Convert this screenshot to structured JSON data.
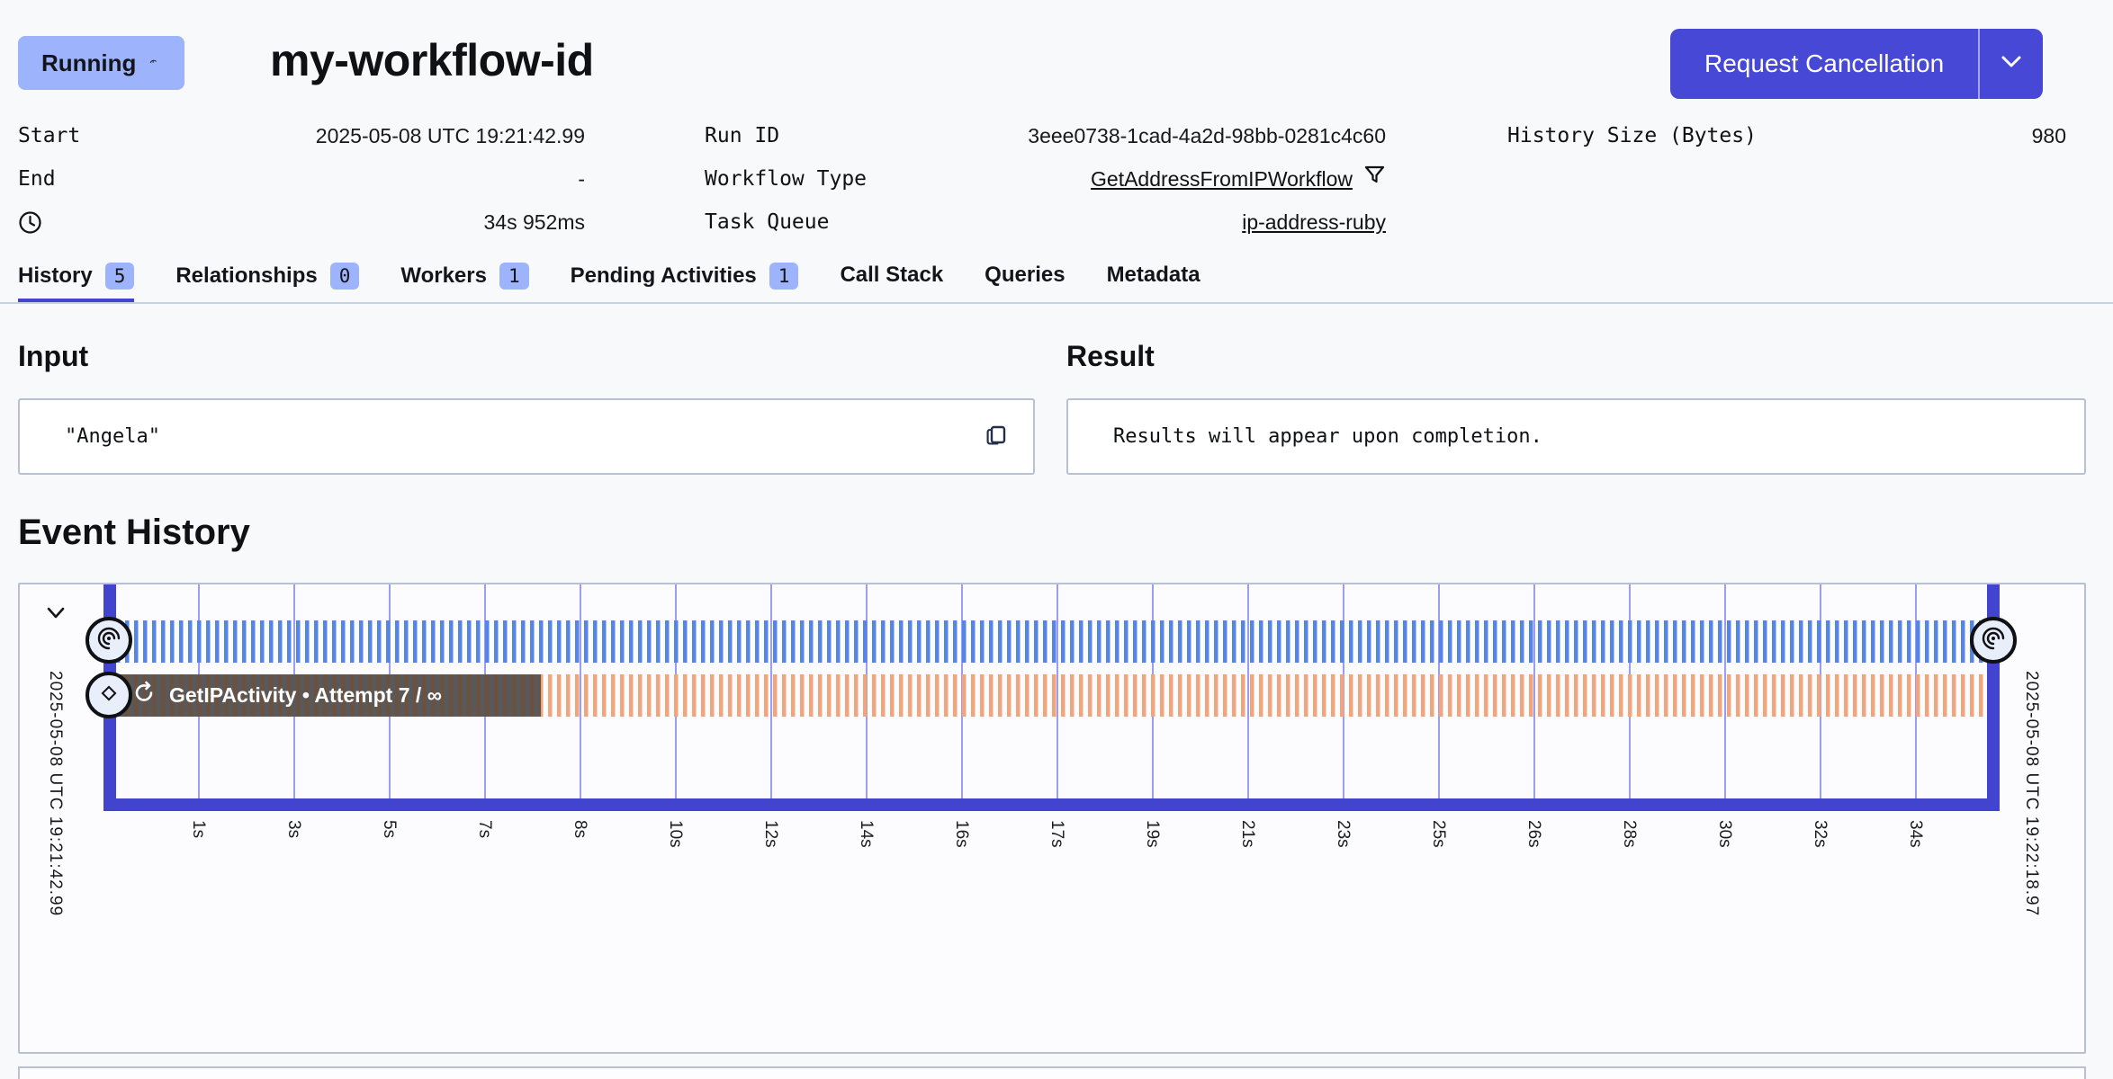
{
  "colors": {
    "accent": "#4244CE",
    "button": "#4749D6",
    "badge": "#9DB3FB",
    "stripe_blue": "#5584EA",
    "stripe_orange": "#F2A47C",
    "border": "#B9C0D4",
    "grid": "#7B7DE9",
    "page_bg": "#F8F9FB",
    "overlay_brown": "#6B5140",
    "overlay_gray": "#59595B"
  },
  "header": {
    "status": "Running",
    "workflow_id": "my-workflow-id",
    "cancel_button": "Request Cancellation"
  },
  "details": {
    "start_label": "Start",
    "start_value": "2025-05-08 UTC 19:21:42.99",
    "end_label": "End",
    "end_value": "-",
    "duration_value": "34s 952ms",
    "run_id_label": "Run ID",
    "run_id_value": "3eee0738-1cad-4a2d-98bb-0281c4c60",
    "workflow_type_label": "Workflow Type",
    "workflow_type_value": "GetAddressFromIPWorkflow",
    "task_queue_label": "Task Queue",
    "task_queue_value": "ip-address-ruby",
    "history_size_label": "History Size (Bytes)",
    "history_size_value": "980"
  },
  "tabs": [
    {
      "label": "History",
      "badge": "5",
      "active": true
    },
    {
      "label": "Relationships",
      "badge": "0"
    },
    {
      "label": "Workers",
      "badge": "1"
    },
    {
      "label": "Pending Activities",
      "badge": "1"
    },
    {
      "label": "Call Stack"
    },
    {
      "label": "Queries"
    },
    {
      "label": "Metadata"
    }
  ],
  "input": {
    "heading": "Input",
    "value": "\"Angela\""
  },
  "result": {
    "heading": "Result",
    "value": "Results will appear upon completion."
  },
  "event_history": {
    "heading": "Event History",
    "start_timestamp": "2025-05-08 UTC 19:21:42.99",
    "end_timestamp": "2025-05-08 UTC 19:22:18.97",
    "activity_label": "GetIPActivity • Attempt 7 / ∞",
    "ticks": [
      "1s",
      "3s",
      "5s",
      "7s",
      "8s",
      "10s",
      "12s",
      "14s",
      "16s",
      "17s",
      "19s",
      "21s",
      "23s",
      "25s",
      "26s",
      "28s",
      "30s",
      "32s",
      "34s"
    ]
  }
}
